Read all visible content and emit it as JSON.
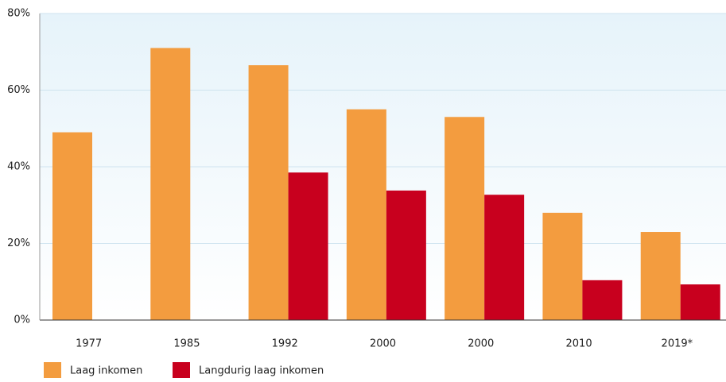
{
  "chart_data": {
    "type": "bar",
    "categories": [
      "1977",
      "1985",
      "1992",
      "2000",
      "2000",
      "2010",
      "2019*"
    ],
    "series": [
      {
        "name": "Laag inkomen",
        "color": "#f39c3f",
        "values": [
          49,
          71,
          66.5,
          55,
          53,
          28,
          23
        ]
      },
      {
        "name": "Langdurig laag inkomen",
        "color": "#c8001e",
        "values": [
          null,
          null,
          38.5,
          33.8,
          32.7,
          10.4,
          9.3
        ]
      }
    ],
    "ylim": [
      0,
      80
    ],
    "yticks": [
      {
        "value": 0,
        "label": "0%"
      },
      {
        "value": 20,
        "label": "20%"
      },
      {
        "value": 40,
        "label": "40%"
      },
      {
        "value": 60,
        "label": "60%"
      },
      {
        "value": 80,
        "label": "80%"
      }
    ],
    "grid": true
  }
}
